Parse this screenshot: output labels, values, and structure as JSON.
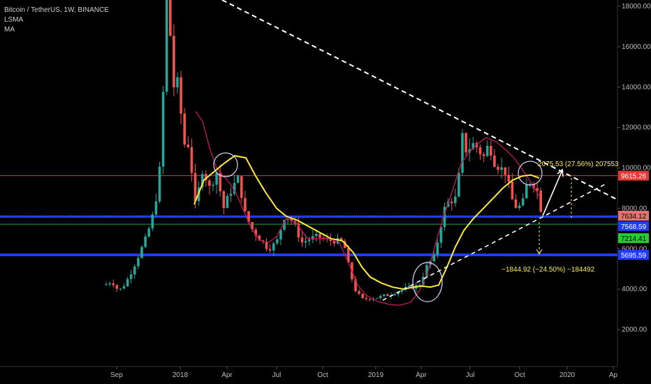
{
  "legend": {
    "title": "Bitcoin / TetherUS, 1W, BINANCE",
    "indicator1": "LSMA",
    "indicator2": "MA"
  },
  "chart_data": {
    "type": "candlestick",
    "y_axis_ticks": [
      "18000.00",
      "16000.00",
      "14000.00",
      "12000.00",
      "10000.00",
      "8000.00",
      "6000.00",
      "4000.00",
      "2000.00"
    ],
    "y_tick_values": [
      18000,
      16000,
      14000,
      12000,
      10000,
      8000,
      6000,
      4000,
      2000
    ],
    "x_axis_labels": [
      "Sep",
      "2018",
      "Apr",
      "Jul",
      "Oct",
      "2019",
      "Apr",
      "Jul",
      "Oct",
      "2020",
      "Ap"
    ],
    "price_levels": [
      {
        "label": "9615.26",
        "value": 9615.26,
        "color": "#e53935",
        "text_color": "#ffffff"
      },
      {
        "label": "7634.12",
        "value": 7634.12,
        "color": "#e57373",
        "text_color": "#000000"
      },
      {
        "label": "7568.59",
        "value": 7568.59,
        "color": "#1e3cff",
        "text_color": "#ffffff"
      },
      {
        "label": "7214.41",
        "value": 7214.41,
        "color": "#22cc33",
        "text_color": "#000000"
      },
      {
        "label": "5695.59",
        "value": 5695.59,
        "color": "#1e3cff",
        "text_color": "#ffffff"
      }
    ],
    "annotations": [
      {
        "text": "2075.53 (27.56%) 207553",
        "color": "#ffee58"
      },
      {
        "text": "−1844.92 (−24.50%) −184492",
        "color": "#ffee58"
      }
    ],
    "colors": {
      "up": "#26a69a",
      "down": "#ef5350",
      "lsma": "#c2185b",
      "ma": "#ffeb3b",
      "background": "#000000"
    }
  }
}
